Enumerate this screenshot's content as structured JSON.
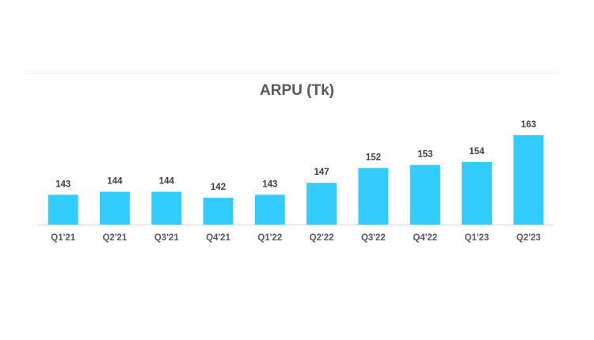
{
  "chart_data": {
    "type": "bar",
    "title": "ARPU (Tk)",
    "categories": [
      "Q1'21",
      "Q2'21",
      "Q3'21",
      "Q4'21",
      "Q1'22",
      "Q2'22",
      "Q3'22",
      "Q4'22",
      "Q1'23",
      "Q2'23"
    ],
    "values": [
      143,
      144,
      144,
      142,
      143,
      147,
      152,
      153,
      154,
      163
    ],
    "ylim": [
      133,
      163
    ],
    "bar_color": "#33ccff",
    "axis_color": "#d9d9d9",
    "label_color": "#404040",
    "tick_color": "#595959",
    "grid": false,
    "legend": "none"
  }
}
